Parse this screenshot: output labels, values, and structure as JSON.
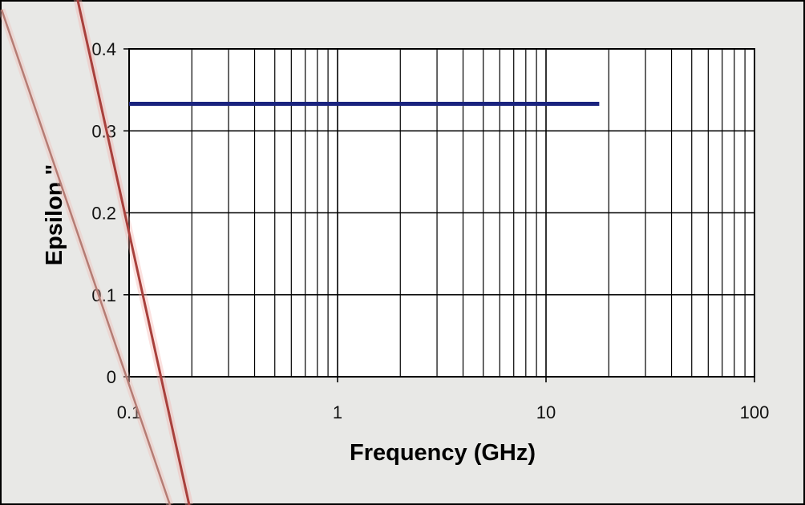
{
  "chart_data": {
    "type": "line",
    "title": "",
    "xlabel": "Frequency (GHz)",
    "ylabel": "Epsilon \"",
    "x_scale": "log",
    "xlim": [
      0.1,
      100
    ],
    "ylim": [
      0,
      0.4
    ],
    "x_ticks": [
      "0.1",
      "1",
      "10",
      "100"
    ],
    "y_ticks": [
      "0",
      "0.1",
      "0.2",
      "0.3",
      "0.4"
    ],
    "grid": true,
    "legend": "none",
    "series": [
      {
        "color": "#1a237e",
        "x": [
          0.1,
          18
        ],
        "y": [
          0.333,
          0.333
        ]
      }
    ]
  },
  "colors": {
    "background": "#e8e8e6",
    "plot_background": "#ffffff",
    "grid": "#000000",
    "series": "#1a237e",
    "overlay_lines": "#b04a4a"
  }
}
